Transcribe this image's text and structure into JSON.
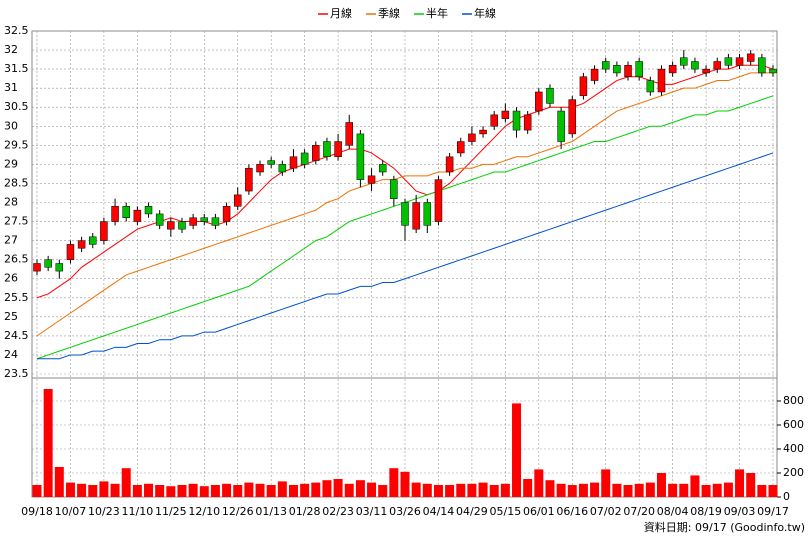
{
  "chart_data": {
    "type": "candlestick",
    "categories": [
      "09/18",
      null,
      null,
      "10/07",
      null,
      null,
      "10/23",
      null,
      null,
      "11/10",
      null,
      null,
      "11/25",
      null,
      null,
      "12/10",
      null,
      null,
      "12/26",
      null,
      null,
      "01/13",
      null,
      null,
      "01/28",
      null,
      null,
      "02/23",
      null,
      null,
      "03/11",
      null,
      null,
      "03/26",
      null,
      null,
      "04/14",
      null,
      null,
      "04/29",
      null,
      null,
      "05/15",
      null,
      null,
      "06/01",
      null,
      null,
      "06/16",
      null,
      null,
      "07/02",
      null,
      null,
      "07/20",
      null,
      null,
      "08/04",
      null,
      null,
      "08/19",
      null,
      null,
      "09/03",
      null,
      null,
      "09/17"
    ],
    "open": [
      26.2,
      26.5,
      26.4,
      26.5,
      26.8,
      27.1,
      27.0,
      27.5,
      27.9,
      27.5,
      27.9,
      27.7,
      27.3,
      27.5,
      27.4,
      27.6,
      27.6,
      27.5,
      27.9,
      28.3,
      28.8,
      29.1,
      29.0,
      28.9,
      29.3,
      29.1,
      29.6,
      29.2,
      29.5,
      29.8,
      28.5,
      29.0,
      28.6,
      28.0,
      27.3,
      28.0,
      27.5,
      28.8,
      29.3,
      29.6,
      29.8,
      30.0,
      30.2,
      30.4,
      29.9,
      30.4,
      31.0,
      30.4,
      29.8,
      30.8,
      31.2,
      31.7,
      31.6,
      31.3,
      31.7,
      31.2,
      30.9,
      31.4,
      31.8,
      31.7,
      31.4,
      31.5,
      31.8,
      31.6,
      31.7,
      31.8,
      31.5
    ],
    "high": [
      26.5,
      26.6,
      26.5,
      27.0,
      27.1,
      27.2,
      27.6,
      28.1,
      28.0,
      27.9,
      28.0,
      27.8,
      27.6,
      27.6,
      27.7,
      27.7,
      27.7,
      28.0,
      28.4,
      29.0,
      29.1,
      29.2,
      29.1,
      29.4,
      29.4,
      29.6,
      29.7,
      29.8,
      30.3,
      29.9,
      28.9,
      29.1,
      28.7,
      28.1,
      28.2,
      28.1,
      28.7,
      29.3,
      29.7,
      30.0,
      30.0,
      30.4,
      30.6,
      30.5,
      30.4,
      31.0,
      31.1,
      30.5,
      30.8,
      31.4,
      31.6,
      31.8,
      31.7,
      31.7,
      31.8,
      31.3,
      31.6,
      31.7,
      32.0,
      31.8,
      31.6,
      31.8,
      31.9,
      31.9,
      32.0,
      31.9,
      31.6
    ],
    "low": [
      26.1,
      26.2,
      26.0,
      26.4,
      26.7,
      26.8,
      26.9,
      27.4,
      27.5,
      27.4,
      27.6,
      27.3,
      27.1,
      27.2,
      27.3,
      27.4,
      27.3,
      27.4,
      27.8,
      28.2,
      28.7,
      28.9,
      28.7,
      28.8,
      28.9,
      29.0,
      29.1,
      29.1,
      29.4,
      28.4,
      28.3,
      28.7,
      27.9,
      27.0,
      27.2,
      27.2,
      27.4,
      28.7,
      29.2,
      29.5,
      29.7,
      29.9,
      30.1,
      29.7,
      29.8,
      30.3,
      30.5,
      29.4,
      29.7,
      30.7,
      31.1,
      31.4,
      31.3,
      31.2,
      31.2,
      30.8,
      30.8,
      31.3,
      31.5,
      31.4,
      31.3,
      31.4,
      31.5,
      31.5,
      31.6,
      31.3,
      31.3
    ],
    "close": [
      26.4,
      26.3,
      26.2,
      26.9,
      27.0,
      26.9,
      27.5,
      27.9,
      27.6,
      27.8,
      27.7,
      27.4,
      27.5,
      27.3,
      27.6,
      27.5,
      27.4,
      27.9,
      28.2,
      28.9,
      29.0,
      29.0,
      28.8,
      29.2,
      29.0,
      29.5,
      29.2,
      29.6,
      30.1,
      28.6,
      28.7,
      28.8,
      28.1,
      27.4,
      28.0,
      27.4,
      28.6,
      29.2,
      29.6,
      29.8,
      29.9,
      30.3,
      30.4,
      29.9,
      30.3,
      30.9,
      30.6,
      29.6,
      30.7,
      31.3,
      31.5,
      31.5,
      31.4,
      31.6,
      31.3,
      30.9,
      31.5,
      31.6,
      31.6,
      31.5,
      31.5,
      31.7,
      31.6,
      31.8,
      31.9,
      31.4,
      31.4
    ],
    "up_color": "#ff0000",
    "down_color": "#00c000",
    "series": [
      {
        "name": "月線",
        "color": "#ff0000",
        "values": [
          25.5,
          25.6,
          25.8,
          26.0,
          26.3,
          26.5,
          26.7,
          26.9,
          27.1,
          27.3,
          27.4,
          27.5,
          27.6,
          27.5,
          27.5,
          27.5,
          27.4,
          27.5,
          27.7,
          28.0,
          28.3,
          28.6,
          28.8,
          28.9,
          29.0,
          29.1,
          29.2,
          29.3,
          29.4,
          29.4,
          29.3,
          29.1,
          28.9,
          28.6,
          28.3,
          28.2,
          28.3,
          28.5,
          28.8,
          29.1,
          29.4,
          29.7,
          30.0,
          30.2,
          30.3,
          30.4,
          30.5,
          30.5,
          30.5,
          30.6,
          30.8,
          31.0,
          31.2,
          31.3,
          31.3,
          31.2,
          31.1,
          31.1,
          31.2,
          31.3,
          31.4,
          31.5,
          31.5,
          31.6,
          31.6,
          31.6,
          31.5
        ]
      },
      {
        "name": "季線",
        "color": "#f07000",
        "values": [
          24.5,
          24.7,
          24.9,
          25.1,
          25.3,
          25.5,
          25.7,
          25.9,
          26.1,
          26.2,
          26.3,
          26.4,
          26.5,
          26.6,
          26.7,
          26.8,
          26.9,
          27.0,
          27.1,
          27.2,
          27.3,
          27.4,
          27.5,
          27.6,
          27.7,
          27.8,
          28.0,
          28.1,
          28.3,
          28.4,
          28.5,
          28.6,
          28.6,
          28.7,
          28.7,
          28.7,
          28.8,
          28.8,
          28.9,
          28.9,
          29.0,
          29.0,
          29.1,
          29.2,
          29.2,
          29.3,
          29.4,
          29.5,
          29.6,
          29.8,
          30.0,
          30.2,
          30.4,
          30.5,
          30.6,
          30.7,
          30.8,
          30.9,
          31.0,
          31.0,
          31.1,
          31.2,
          31.2,
          31.3,
          31.4,
          31.4,
          31.4
        ]
      },
      {
        "name": "半年",
        "color": "#00d000",
        "values": [
          23.9,
          24.0,
          24.1,
          24.2,
          24.3,
          24.4,
          24.5,
          24.6,
          24.7,
          24.8,
          24.9,
          25.0,
          25.1,
          25.2,
          25.3,
          25.4,
          25.5,
          25.6,
          25.7,
          25.8,
          26.0,
          26.2,
          26.4,
          26.6,
          26.8,
          27.0,
          27.1,
          27.3,
          27.5,
          27.6,
          27.7,
          27.8,
          27.9,
          28.0,
          28.1,
          28.2,
          28.3,
          28.4,
          28.5,
          28.6,
          28.7,
          28.8,
          28.8,
          28.9,
          29.0,
          29.1,
          29.2,
          29.3,
          29.4,
          29.5,
          29.6,
          29.6,
          29.7,
          29.8,
          29.9,
          30.0,
          30.0,
          30.1,
          30.2,
          30.3,
          30.3,
          30.4,
          30.4,
          30.5,
          30.6,
          30.7,
          30.8
        ]
      },
      {
        "name": "年線",
        "color": "#0050d0",
        "values": [
          23.9,
          23.9,
          23.9,
          24.0,
          24.0,
          24.1,
          24.1,
          24.2,
          24.2,
          24.3,
          24.3,
          24.4,
          24.4,
          24.5,
          24.5,
          24.6,
          24.6,
          24.7,
          24.8,
          24.9,
          25.0,
          25.1,
          25.2,
          25.3,
          25.4,
          25.5,
          25.6,
          25.6,
          25.7,
          25.8,
          25.8,
          25.9,
          25.9,
          26.0,
          26.1,
          26.2,
          26.3,
          26.4,
          26.5,
          26.6,
          26.7,
          26.8,
          26.9,
          27.0,
          27.1,
          27.2,
          27.3,
          27.4,
          27.5,
          27.6,
          27.7,
          27.8,
          27.9,
          28.0,
          28.1,
          28.2,
          28.3,
          28.4,
          28.5,
          28.6,
          28.7,
          28.8,
          28.9,
          29.0,
          29.1,
          29.2,
          29.3
        ]
      }
    ],
    "ylim": [
      23.5,
      32.5
    ],
    "yticks": [
      23.5,
      24,
      24.5,
      25,
      25.5,
      26,
      26.5,
      27,
      27.5,
      28,
      28.5,
      29,
      29.5,
      30,
      30.5,
      31,
      31.5,
      32,
      32.5
    ],
    "grid": true,
    "volume": {
      "color": "#ff0000",
      "values": [
        100,
        900,
        250,
        120,
        110,
        100,
        130,
        110,
        240,
        100,
        110,
        100,
        90,
        100,
        110,
        90,
        100,
        110,
        100,
        120,
        110,
        100,
        130,
        100,
        110,
        120,
        140,
        150,
        110,
        140,
        120,
        100,
        240,
        210,
        120,
        110,
        100,
        100,
        110,
        110,
        120,
        100,
        110,
        780,
        150,
        230,
        140,
        110,
        100,
        110,
        120,
        230,
        110,
        100,
        110,
        120,
        200,
        110,
        110,
        180,
        100,
        110,
        120,
        230,
        200,
        100,
        100
      ],
      "ylim": [
        0,
        975
      ],
      "yticks": [
        0,
        200,
        400,
        600,
        800
      ]
    },
    "source_note": "資料日期: 09/17  (Goodinfo.tw)"
  }
}
